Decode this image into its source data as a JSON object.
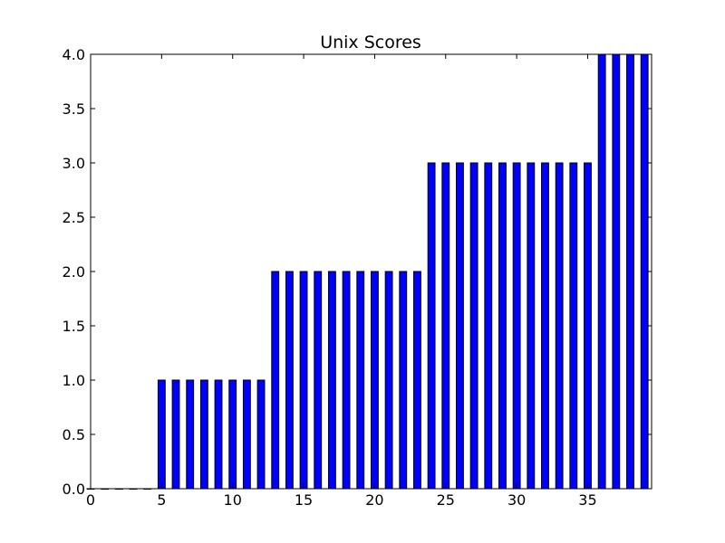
{
  "chart_data": {
    "type": "bar",
    "title": "Unix Scores",
    "xlabel": "",
    "ylabel": "",
    "x": [
      0,
      1,
      2,
      3,
      4,
      5,
      6,
      7,
      8,
      9,
      10,
      11,
      12,
      13,
      14,
      15,
      16,
      17,
      18,
      19,
      20,
      21,
      22,
      23,
      24,
      25,
      26,
      27,
      28,
      29,
      30,
      31,
      32,
      33,
      34,
      35,
      36,
      37,
      38,
      39
    ],
    "values": [
      0,
      0,
      0,
      0,
      0,
      1,
      1,
      1,
      1,
      1,
      1,
      1,
      1,
      2,
      2,
      2,
      2,
      2,
      2,
      2,
      2,
      2,
      2,
      2,
      3,
      3,
      3,
      3,
      3,
      3,
      3,
      3,
      3,
      3,
      3,
      3,
      4,
      4,
      4,
      4
    ],
    "xlim": [
      0,
      39.5
    ],
    "ylim": [
      0,
      4.0
    ],
    "xticks": [
      "0",
      "5",
      "10",
      "15",
      "20",
      "25",
      "30",
      "35"
    ],
    "yticks": [
      "0.0",
      "0.5",
      "1.0",
      "1.5",
      "2.0",
      "2.5",
      "3.0",
      "3.5",
      "4.0"
    ],
    "bar_width": 0.5,
    "bar_color": "#0000ff",
    "edge_color": "#000000",
    "grid": false,
    "legend": "none"
  }
}
